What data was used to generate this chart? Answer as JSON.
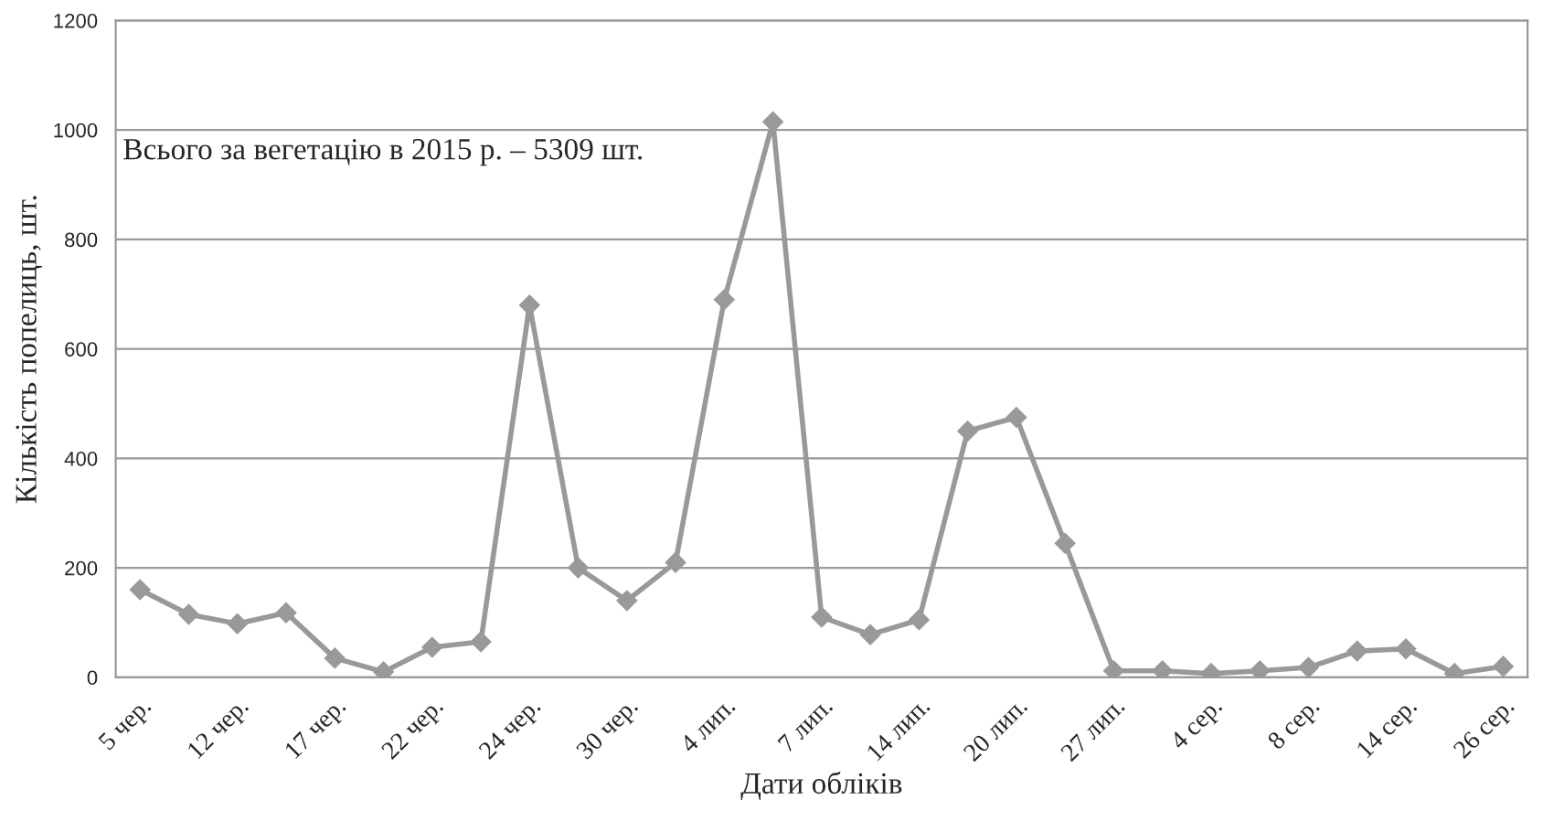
{
  "chart_data": {
    "type": "line",
    "xlabel": "Дати обліків",
    "ylabel": "Кількість попелиць, шт.",
    "annotations": [
      "Всього за вегетацію в 2015 р. – 5309 шт."
    ],
    "categories": [
      "5 чер.",
      null,
      "12 чер.",
      null,
      "17 чер.",
      null,
      "22 чер.",
      null,
      "24 чер.",
      null,
      "30 чер.",
      null,
      "4 лип.",
      null,
      "7 лип.",
      null,
      "14 лип.",
      null,
      "20 лип.",
      null,
      "27 лип.",
      null,
      "4 сер.",
      null,
      "8 сер.",
      null,
      "14 сер.",
      null,
      "26 сер."
    ],
    "series": [
      {
        "color": "#999999",
        "values": [
          160,
          115,
          98,
          118,
          35,
          10,
          55,
          65,
          680,
          200,
          140,
          210,
          690,
          1015,
          110,
          78,
          105,
          450,
          475,
          245,
          12,
          12,
          7,
          12,
          18,
          48,
          52,
          7,
          20
        ]
      }
    ],
    "ylim": [
      0,
      1200
    ],
    "yticks": [
      0,
      200,
      400,
      600,
      800,
      1000,
      1200
    ],
    "grid": "y",
    "marker": "diamond",
    "line_style": "solid"
  }
}
